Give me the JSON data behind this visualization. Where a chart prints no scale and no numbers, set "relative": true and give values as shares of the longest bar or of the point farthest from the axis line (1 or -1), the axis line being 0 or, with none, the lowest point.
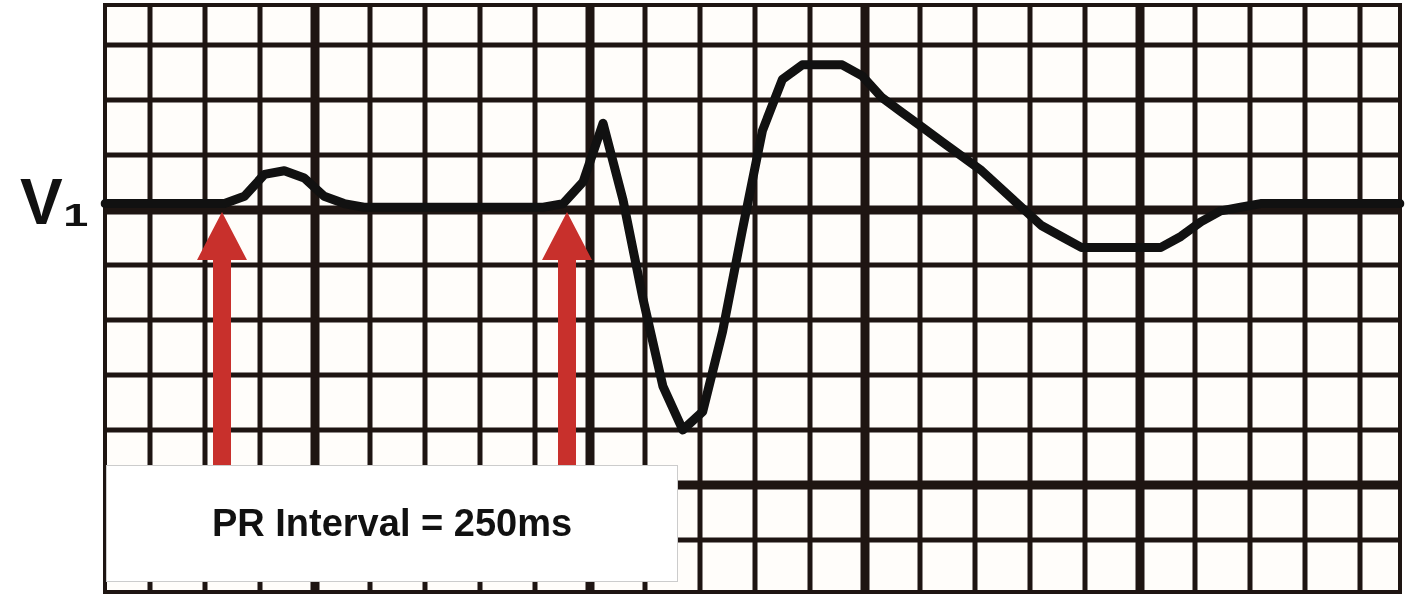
{
  "chart_data": {
    "type": "line",
    "relative": true,
    "ylabel": "V₁",
    "grid": true,
    "legend": false,
    "marker": "none",
    "line_style": "solid",
    "annotations": [
      "PR Interval = 250ms"
    ],
    "categories": [
      null,
      null,
      null,
      null,
      null,
      null,
      null,
      null,
      null,
      null,
      null,
      null,
      null,
      null,
      null,
      null,
      null,
      null,
      null,
      null,
      null,
      null,
      null,
      null,
      null,
      null,
      null,
      null,
      null,
      null,
      null,
      null,
      null,
      null,
      null,
      null,
      null,
      null,
      null,
      null,
      null,
      null,
      null,
      null,
      null,
      null,
      null,
      null,
      null,
      null,
      null,
      null,
      null,
      null,
      null,
      null,
      null,
      null,
      null,
      null,
      null,
      null,
      null,
      null,
      null,
      null
    ],
    "series": [
      {
        "color": "#111111",
        "values": [
          0.62,
          0.62,
          0.62,
          0.62,
          0.62,
          0.62,
          0.62,
          0.64,
          0.7,
          0.71,
          0.69,
          0.64,
          0.62,
          0.61,
          0.61,
          0.61,
          0.61,
          0.61,
          0.61,
          0.61,
          0.61,
          0.61,
          0.61,
          0.62,
          0.68,
          0.84,
          0.63,
          0.36,
          0.12,
          0,
          0.05,
          0.27,
          0.55,
          0.82,
          0.96,
          1,
          1,
          1,
          0.97,
          0.91,
          0.87,
          0.83,
          0.79,
          0.75,
          0.71,
          0.66,
          0.61,
          0.56,
          0.53,
          0.5,
          0.5,
          0.5,
          0.5,
          0.5,
          0.53,
          0.57,
          0.6,
          0.61,
          0.62,
          0.62,
          0.62,
          0.62,
          0.62,
          0.62,
          0.62,
          0.62
        ]
      }
    ]
  }
}
